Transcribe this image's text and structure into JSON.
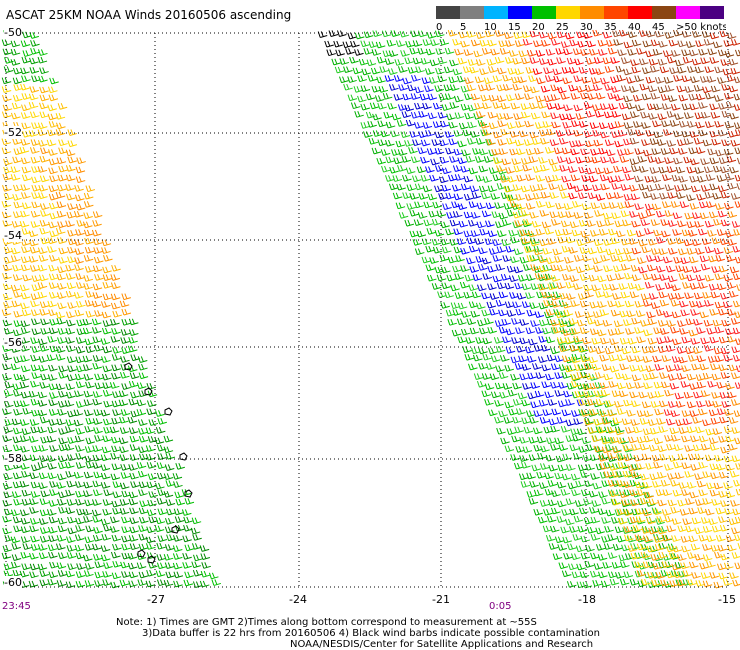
{
  "header": {
    "title": "ASCAT 25KM NOAA Winds 20160506 ascending"
  },
  "legend": {
    "labels": [
      "0",
      "5",
      "10",
      "15",
      "20",
      "25",
      "30",
      "35",
      "40",
      "45",
      ">50 knots"
    ],
    "colors": [
      "#444444",
      "#7f7f7f",
      "#00b4ff",
      "#0000ff",
      "#00c000",
      "#ffd700",
      "#ff8c00",
      "#ff4500",
      "#ff0000",
      "#8b4513",
      "#ff00ff",
      "#4b0082"
    ]
  },
  "axes": {
    "x_ticks": [
      "-27",
      "-24",
      "-21",
      "-18",
      "-15"
    ],
    "y_ticks": [
      "-50",
      "-52",
      "-54",
      "-56",
      "-58",
      "-60"
    ]
  },
  "times": {
    "left": "23:45",
    "middle": "0:05"
  },
  "notes": {
    "line1": "Note: 1) Times are GMT 2)Times along bottom correspond to measurement at ~55S",
    "line2": "3)Data buffer is 22 hrs from 20160506 4) Black wind barbs indicate possible contamination",
    "line3": "NOAA/NESDIS/Center for Satellite Applications and Research"
  }
}
